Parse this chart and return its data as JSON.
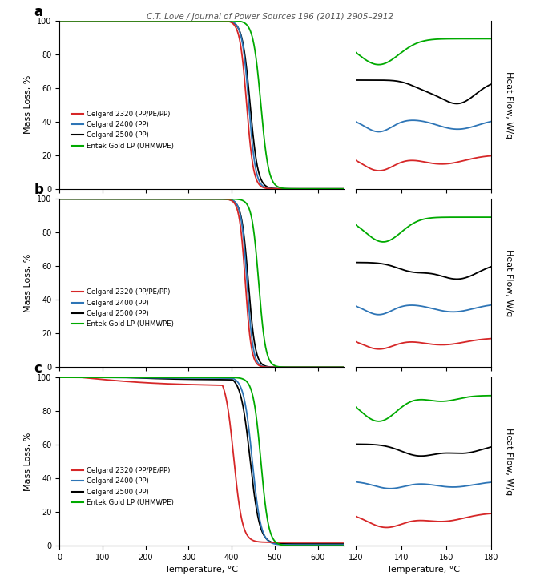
{
  "title": "C.T. Love / Journal of Power Sources 196 (2011) 2905–2912",
  "colors": {
    "red": "#d62728",
    "blue": "#2E75B6",
    "black": "#000000",
    "green": "#00AA00"
  },
  "legend_labels": [
    "Celgard 2320 (PP/PE/PP)",
    "Celgard 2400 (PP)",
    "Celgard 2500 (PP)",
    "Entek Gold LP (UHMWPE)"
  ],
  "panel_labels": [
    "a",
    "b",
    "c"
  ],
  "tga_xlabel": "Temperature, °C",
  "tga_ylabel": "Mass Loss, %",
  "dsc_xlabel": "Temperature, °C",
  "dsc_ylabel": "Heat Flow, W/g",
  "tga_xlim": [
    0,
    660
  ],
  "tga_ylim": [
    0,
    100
  ],
  "dsc_xlim": [
    120,
    180
  ],
  "tga_xticks": [
    0,
    100,
    200,
    300,
    400,
    500,
    600
  ],
  "tga_yticks": [
    0,
    20,
    40,
    60,
    80,
    100
  ],
  "dsc_xticks": [
    120,
    140,
    160,
    180
  ]
}
